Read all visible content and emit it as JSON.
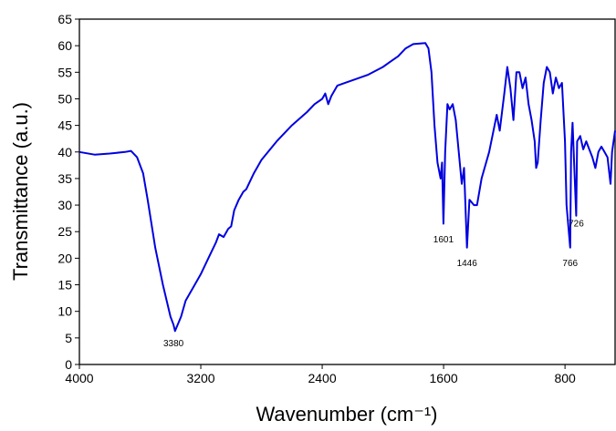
{
  "chart_data": {
    "type": "line",
    "xlabel": "Wavenumber (cm⁻¹)",
    "ylabel": "Transmittance (a.u.)",
    "xlim": [
      4000,
      470
    ],
    "ylim": [
      0,
      65
    ],
    "xticks": [
      4000,
      3200,
      2400,
      1600,
      800
    ],
    "yticks": [
      0,
      5,
      10,
      15,
      20,
      25,
      30,
      35,
      40,
      45,
      50,
      55,
      60,
      65
    ],
    "series": [
      {
        "color": "#0000e0",
        "x": [
          4000,
          3900,
          3800,
          3700,
          3660,
          3620,
          3580,
          3550,
          3500,
          3450,
          3400,
          3380,
          3370,
          3330,
          3300,
          3250,
          3200,
          3150,
          3100,
          3080,
          3050,
          3020,
          3000,
          2980,
          2950,
          2920,
          2900,
          2850,
          2800,
          2700,
          2600,
          2500,
          2450,
          2400,
          2380,
          2360,
          2340,
          2300,
          2200,
          2100,
          2000,
          1950,
          1900,
          1850,
          1800,
          1720,
          1700,
          1680,
          1660,
          1640,
          1620,
          1610,
          1601,
          1590,
          1575,
          1560,
          1540,
          1520,
          1500,
          1480,
          1465,
          1446,
          1430,
          1400,
          1380,
          1350,
          1300,
          1250,
          1230,
          1200,
          1180,
          1160,
          1140,
          1120,
          1100,
          1080,
          1060,
          1040,
          1020,
          1000,
          990,
          980,
          960,
          940,
          920,
          900,
          880,
          860,
          840,
          820,
          800,
          790,
          766,
          760,
          750,
          740,
          726,
          720,
          700,
          680,
          660,
          640,
          620,
          600,
          580,
          560,
          540,
          520,
          500,
          490,
          470
        ],
        "values": [
          40,
          39.5,
          39.7,
          40,
          40.2,
          39,
          36,
          31,
          22,
          15,
          9,
          7.5,
          6.3,
          9,
          12,
          14.5,
          17,
          20,
          23,
          24.5,
          24,
          25.5,
          26,
          29,
          31,
          32.5,
          33,
          36,
          38.5,
          42,
          45,
          47.5,
          49,
          50,
          51,
          49,
          50.5,
          52.5,
          53.5,
          54.5,
          56,
          57,
          58,
          59.5,
          60.3,
          60.5,
          59.5,
          55,
          45,
          38,
          35,
          38,
          26.5,
          40,
          49,
          48,
          49,
          46,
          40,
          34,
          37,
          22,
          31,
          30,
          30,
          35,
          40,
          47,
          44,
          51,
          56,
          52,
          46,
          55,
          55,
          52,
          54,
          49,
          46,
          42,
          37,
          38,
          46,
          53,
          56,
          55,
          51,
          54,
          52,
          53,
          42,
          30,
          22,
          40,
          45.5,
          38,
          28,
          42,
          43,
          40.5,
          42,
          40.5,
          39,
          37,
          40,
          41,
          40,
          39,
          34,
          40,
          44
        ]
      }
    ],
    "annotations": [
      {
        "text": "3380",
        "x": 3380,
        "y": 3.4
      },
      {
        "text": "1601",
        "x": 1601,
        "y": 23
      },
      {
        "text": "1446",
        "x": 1446,
        "y": 18.5
      },
      {
        "text": "766",
        "x": 766,
        "y": 18.5
      },
      {
        "text": "726",
        "x": 726,
        "y": 26
      }
    ]
  }
}
